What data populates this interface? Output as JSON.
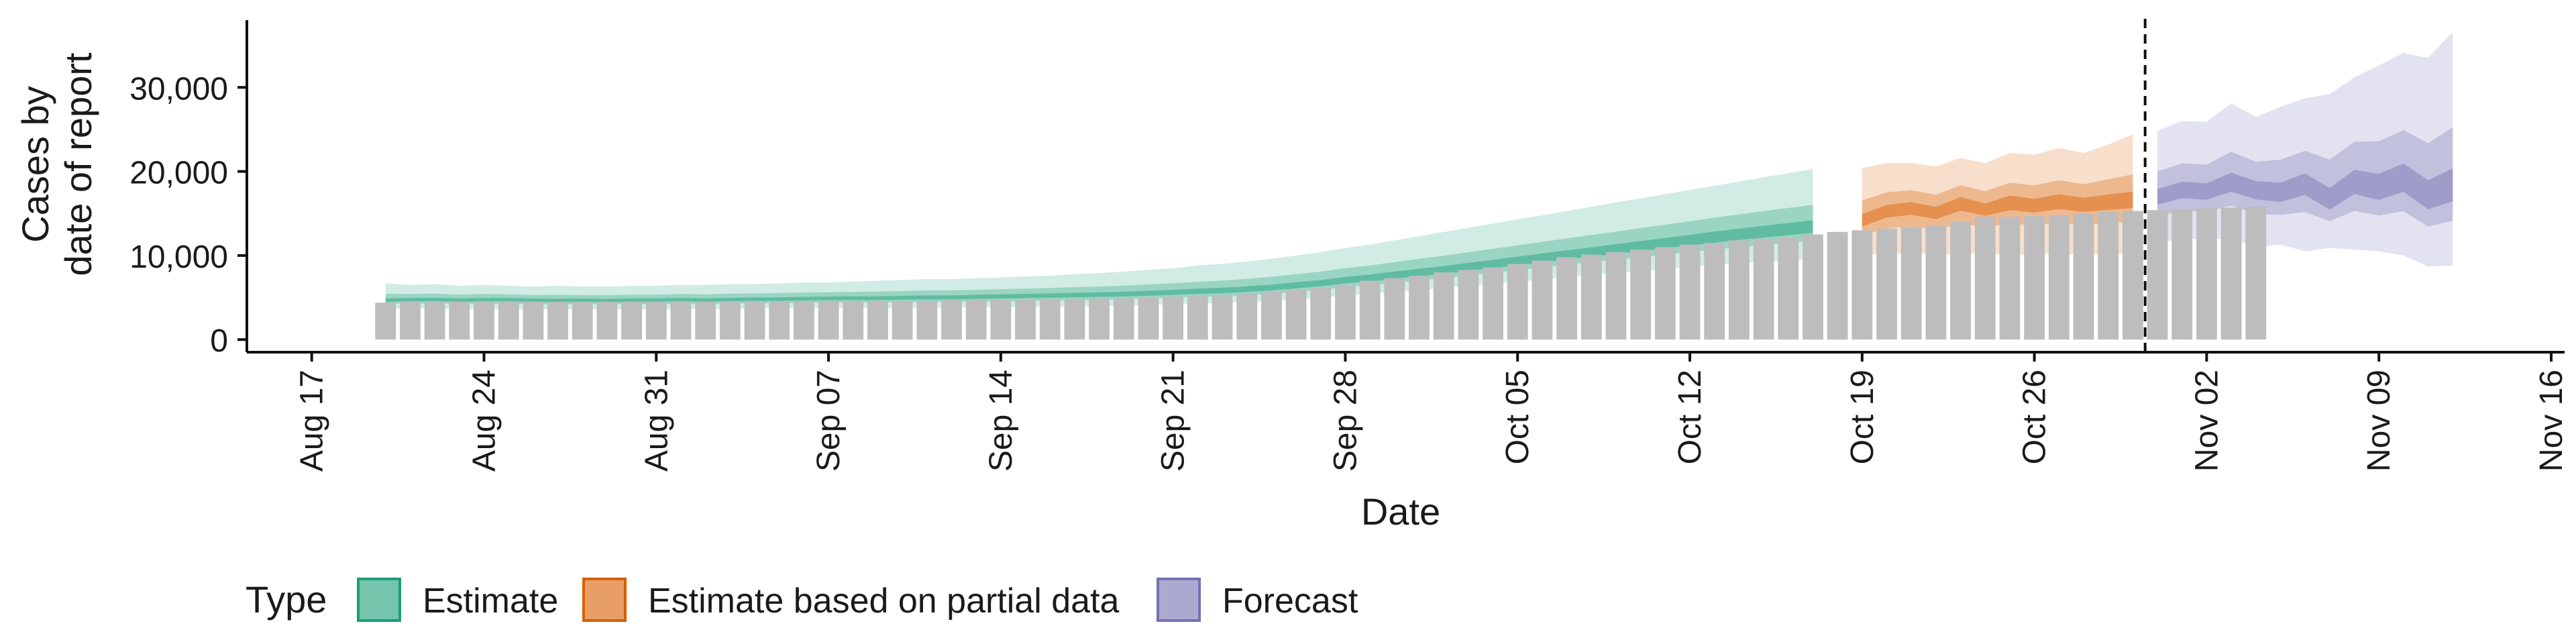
{
  "chart_data": {
    "type": "bar",
    "title": "",
    "xlabel": "Date",
    "ylabel_lines": [
      "Cases by",
      "date of report"
    ],
    "ylim": [
      -1500,
      38000
    ],
    "xlim": [
      "2020-08-16",
      "2020-11-16"
    ],
    "y_ticks": [
      0,
      10000,
      20000,
      30000
    ],
    "y_tick_labels": [
      "0",
      "10,000",
      "20,000",
      "30,000"
    ],
    "x_ticks": [
      "2020-08-17",
      "2020-08-24",
      "2020-08-31",
      "2020-09-07",
      "2020-09-14",
      "2020-09-21",
      "2020-09-28",
      "2020-10-05",
      "2020-10-12",
      "2020-10-19",
      "2020-10-26",
      "2020-11-02",
      "2020-11-09",
      "2020-11-16"
    ],
    "x_tick_labels": [
      "Aug 17",
      "Aug 24",
      "Aug 31",
      "Sep 07",
      "Sep 14",
      "Sep 21",
      "Sep 28",
      "Oct 05",
      "Oct 12",
      "Oct 19",
      "Oct 26",
      "Nov 02",
      "Nov 09",
      "Nov 16"
    ],
    "grid": false,
    "legend_position": "bottom-left",
    "legend": {
      "title": "Type",
      "items": [
        {
          "label": "Estimate",
          "color": "#1b9e77"
        },
        {
          "label": "Estimate based on partial data",
          "color": "#d95f02"
        },
        {
          "label": "Forecast",
          "color": "#7570b3"
        }
      ]
    },
    "reported_cases": {
      "start_date": "2020-08-20",
      "color": "#bdbdbd",
      "values": [
        4400,
        4500,
        4500,
        4500,
        4500,
        4500,
        4500,
        4500,
        4500,
        4500,
        4500,
        4500,
        4500,
        4500,
        4500,
        4500,
        4500,
        4600,
        4600,
        4600,
        4600,
        4600,
        4600,
        4700,
        4700,
        4700,
        4700,
        4800,
        4800,
        4900,
        4900,
        5000,
        5100,
        5200,
        5300,
        5500,
        5700,
        6000,
        6200,
        6500,
        7000,
        7300,
        7600,
        8000,
        8300,
        8600,
        9000,
        9400,
        9800,
        10100,
        10400,
        10700,
        11000,
        11300,
        11500,
        11800,
        12000,
        12200,
        12500,
        12800,
        13000,
        13200,
        13400,
        13600,
        14000,
        14600,
        14600,
        14700,
        14800,
        15000,
        15200,
        15300,
        15400,
        15500,
        15700,
        15700,
        15800
      ]
    },
    "estimate": {
      "start_date": "2020-08-20",
      "end_date": "2020-10-17",
      "median": [
        4600,
        4700,
        4700,
        4650,
        4700,
        4700,
        4650,
        4600,
        4650,
        4600,
        4650,
        4650,
        4700,
        4650,
        4700,
        4750,
        4750,
        4800,
        4850,
        4850,
        4850,
        4900,
        4950,
        4950,
        5000,
        5050,
        5100,
        5150,
        5200,
        5250,
        5300,
        5400,
        5500,
        5600,
        5700,
        5850,
        6050,
        6300,
        6550,
        6900,
        7150,
        7500,
        7800,
        8100,
        8450,
        8800,
        9150,
        9500,
        9850,
        10200,
        10550,
        10900,
        11250,
        11600,
        11950,
        12300,
        12600,
        12900,
        13200
      ],
      "lower90": [
        3700,
        3700,
        3700,
        3650,
        3650,
        3650,
        3600,
        3600,
        3600,
        3600,
        3600,
        3600,
        3650,
        3650,
        3650,
        3700,
        3700,
        3700,
        3750,
        3750,
        3750,
        3800,
        3800,
        3800,
        3850,
        3850,
        3900,
        3950,
        3950,
        4000,
        4050,
        4150,
        4200,
        4300,
        4350,
        4450,
        4600,
        4800,
        5000,
        5250,
        5450,
        5700,
        5900,
        6150,
        6400,
        6650,
        6900,
        7150,
        7450,
        7700,
        7950,
        8150,
        8400,
        8650,
        8850,
        9050,
        9250,
        9450,
        9600
      ],
      "upper90": [
        6700,
        6500,
        6600,
        6400,
        6500,
        6400,
        6300,
        6400,
        6300,
        6300,
        6400,
        6400,
        6500,
        6500,
        6600,
        6600,
        6700,
        6800,
        6800,
        6900,
        7000,
        7100,
        7200,
        7200,
        7300,
        7400,
        7500,
        7600,
        7800,
        7900,
        8100,
        8300,
        8500,
        8800,
        9000,
        9300,
        9600,
        10000,
        10400,
        10900,
        11300,
        11800,
        12300,
        12800,
        13300,
        13800,
        14300,
        14800,
        15300,
        15800,
        16300,
        16800,
        17300,
        17800,
        18300,
        18800,
        19300,
        19800,
        20300
      ]
    },
    "partial": {
      "start_date": "2020-10-19",
      "end_date": "2020-10-30",
      "median": [
        14000,
        15200,
        15600,
        15000,
        16200,
        15400,
        16300,
        15900,
        16400,
        16000,
        16300,
        16500
      ],
      "lower90": [
        10000,
        10300,
        10200,
        10300,
        10000,
        10500,
        9900,
        10300,
        10100,
        10200,
        10100,
        10300
      ],
      "upper90": [
        20400,
        21000,
        21000,
        20600,
        21600,
        21000,
        22200,
        22000,
        22800,
        22200,
        23200,
        24400
      ]
    },
    "forecast": {
      "start_date": "2020-10-31",
      "end_date": "2020-11-12",
      "median": [
        16800,
        17600,
        17400,
        18500,
        17600,
        17200,
        18300,
        16200,
        18400,
        17600,
        18800,
        16600,
        17700
      ],
      "lower90": [
        11400,
        12000,
        11900,
        12100,
        11000,
        11300,
        10500,
        10900,
        10700,
        10500,
        10000,
        8700,
        8800
      ],
      "upper90": [
        24800,
        26000,
        25900,
        28100,
        26500,
        27700,
        28700,
        29200,
        31200,
        32600,
        34100,
        33500,
        36600
      ]
    },
    "vertical_line_date": "2020-10-30"
  }
}
